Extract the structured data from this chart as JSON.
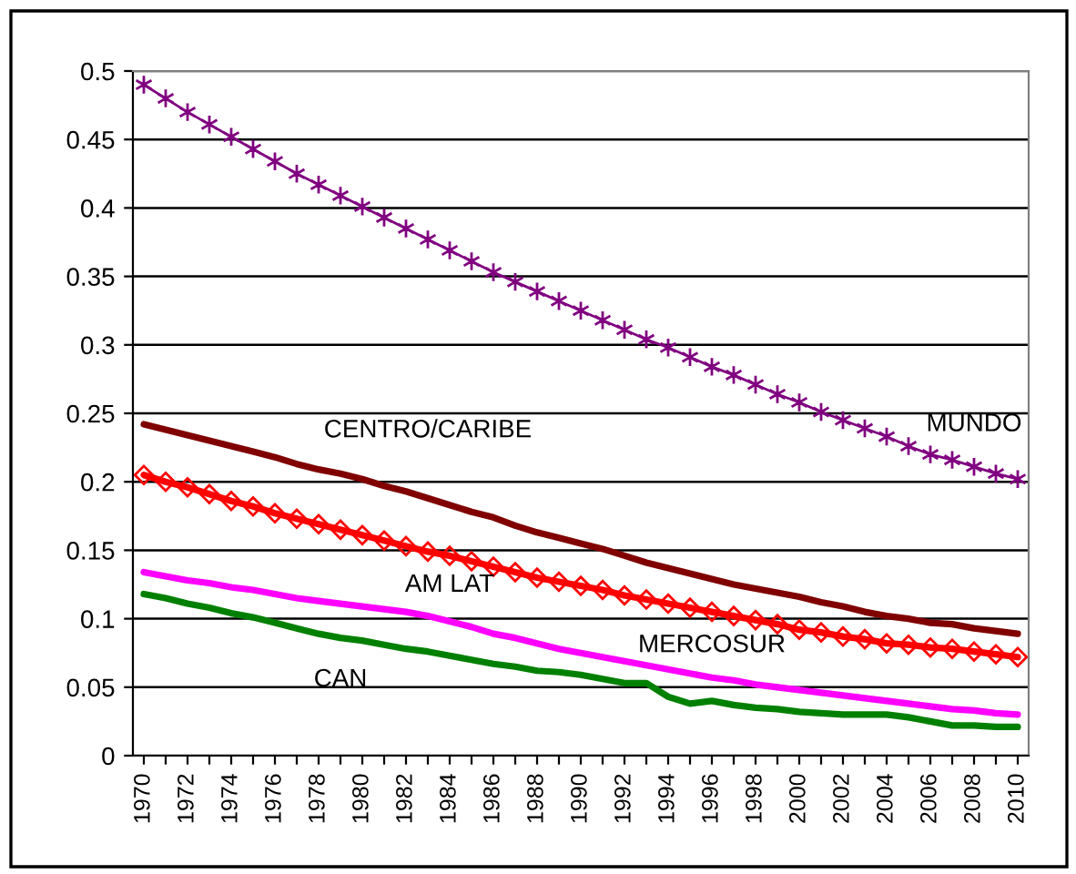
{
  "chart_data": {
    "type": "line",
    "categories": [
      "1970",
      null,
      "1972",
      null,
      "1974",
      null,
      "1976",
      null,
      "1978",
      null,
      "1980",
      null,
      "1982",
      null,
      "1984",
      null,
      "1986",
      null,
      "1988",
      null,
      "1990",
      null,
      "1992",
      null,
      "1994",
      null,
      "1996",
      null,
      "1998",
      null,
      "2000",
      null,
      "2002",
      null,
      "2004",
      null,
      "2006",
      null,
      "2008",
      null,
      "2010"
    ],
    "ylim": [
      0,
      0.5
    ],
    "yticks": [
      0,
      0.05,
      0.1,
      0.15,
      0.2,
      0.25,
      0.3,
      0.35,
      0.4,
      0.45,
      0.5
    ],
    "grid": "y",
    "legend": false,
    "series": [
      {
        "name": "MUNDO",
        "color": "#800080",
        "marker": "cross",
        "values": [
          0.49,
          0.48,
          0.47,
          0.461,
          0.452,
          0.443,
          0.434,
          0.425,
          0.417,
          0.409,
          0.401,
          0.393,
          0.385,
          0.377,
          0.369,
          0.361,
          0.353,
          0.346,
          0.339,
          0.332,
          0.325,
          0.318,
          0.311,
          0.304,
          0.298,
          0.291,
          0.284,
          0.278,
          0.271,
          0.264,
          0.258,
          0.251,
          0.245,
          0.239,
          0.233,
          0.226,
          0.22,
          0.216,
          0.211,
          0.206,
          0.202
        ]
      },
      {
        "name": "CENTRO/CARIBE",
        "color": "#800000",
        "marker": "none",
        "values": [
          0.242,
          0.238,
          0.234,
          0.23,
          0.226,
          0.222,
          0.218,
          0.213,
          0.209,
          0.206,
          0.202,
          0.197,
          0.193,
          0.188,
          0.183,
          0.178,
          0.174,
          0.168,
          0.163,
          0.159,
          0.155,
          0.151,
          0.146,
          0.141,
          0.137,
          0.133,
          0.129,
          0.125,
          0.122,
          0.119,
          0.116,
          0.112,
          0.109,
          0.105,
          0.102,
          0.1,
          0.097,
          0.096,
          0.093,
          0.091,
          0.089
        ]
      },
      {
        "name": "AM LAT",
        "color": "#ff0000",
        "marker": "diamond",
        "values": [
          0.205,
          0.2,
          0.196,
          0.191,
          0.186,
          0.182,
          0.177,
          0.173,
          0.169,
          0.165,
          0.161,
          0.157,
          0.153,
          0.149,
          0.146,
          0.142,
          0.138,
          0.134,
          0.13,
          0.127,
          0.124,
          0.121,
          0.117,
          0.114,
          0.111,
          0.108,
          0.105,
          0.102,
          0.099,
          0.096,
          0.092,
          0.09,
          0.087,
          0.085,
          0.082,
          0.081,
          0.079,
          0.078,
          0.076,
          0.074,
          0.072
        ]
      },
      {
        "name": "MERCOSUR",
        "color": "#ff00ff",
        "marker": "none",
        "values": [
          0.134,
          0.131,
          0.128,
          0.126,
          0.123,
          0.121,
          0.118,
          0.115,
          0.113,
          0.111,
          0.109,
          0.107,
          0.105,
          0.102,
          0.098,
          0.094,
          0.089,
          0.086,
          0.082,
          0.078,
          0.075,
          0.072,
          0.069,
          0.066,
          0.063,
          0.06,
          0.057,
          0.055,
          0.052,
          0.05,
          0.048,
          0.046,
          0.044,
          0.042,
          0.04,
          0.038,
          0.036,
          0.034,
          0.033,
          0.031,
          0.03
        ]
      },
      {
        "name": "CAN",
        "color": "#008000",
        "marker": "none",
        "values": [
          0.118,
          0.115,
          0.111,
          0.108,
          0.104,
          0.101,
          0.097,
          0.093,
          0.089,
          0.086,
          0.084,
          0.081,
          0.078,
          0.076,
          0.073,
          0.07,
          0.067,
          0.065,
          0.062,
          0.061,
          0.059,
          0.056,
          0.053,
          0.053,
          0.043,
          0.038,
          0.04,
          0.037,
          0.035,
          0.034,
          0.032,
          0.031,
          0.03,
          0.03,
          0.03,
          0.028,
          0.025,
          0.022,
          0.022,
          0.021,
          0.021
        ]
      }
    ]
  }
}
